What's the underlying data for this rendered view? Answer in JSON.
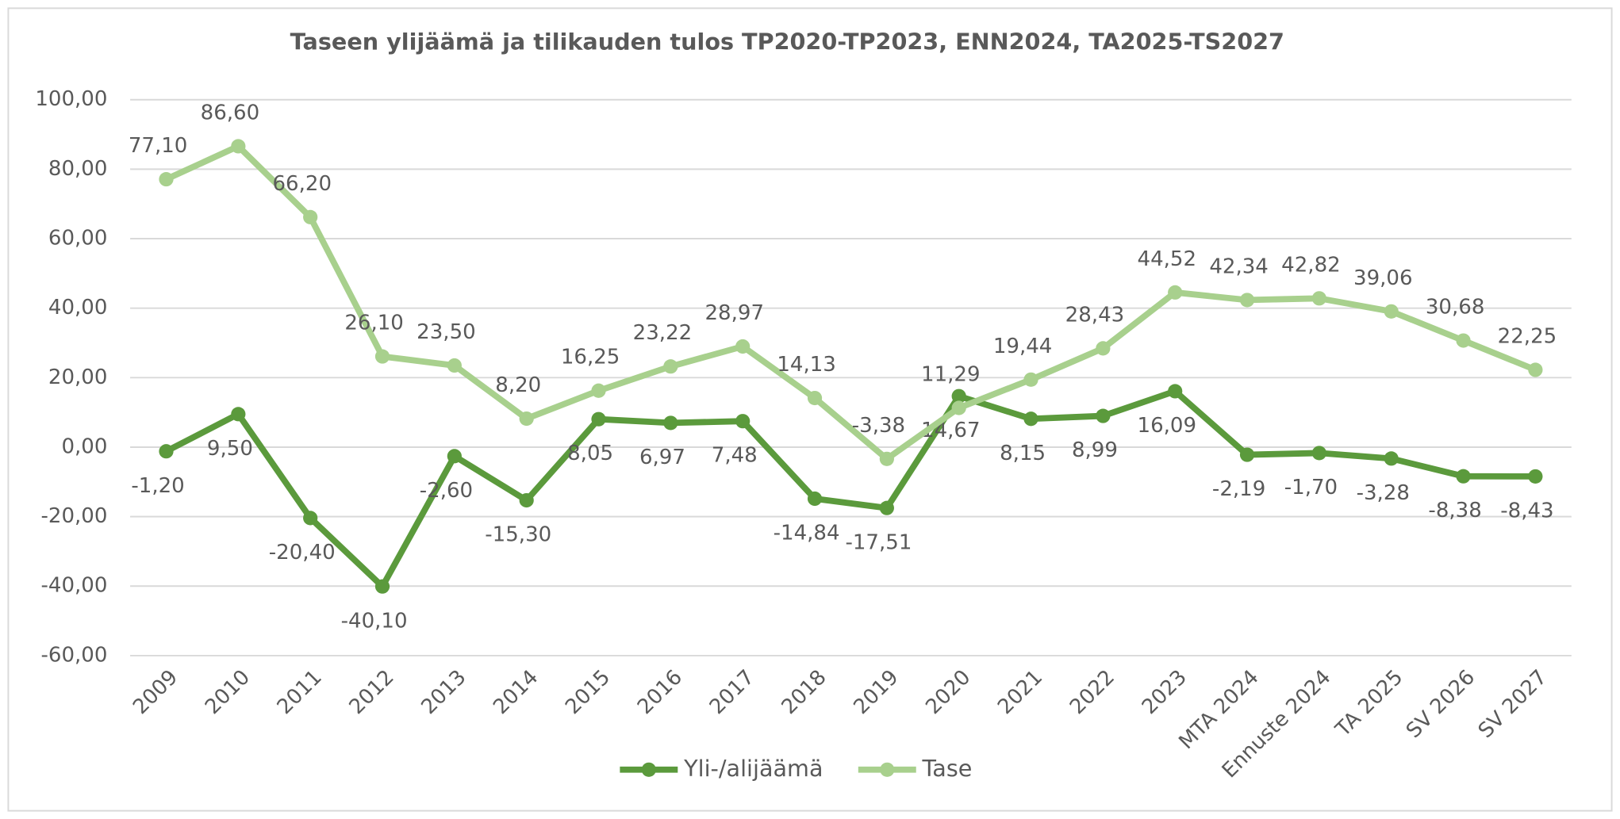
{
  "chart_data": {
    "type": "line",
    "title": "Taseen ylijäämä ja tilikauden tulos TP2020-TP2023, ENN2024, TA2025-TS2027",
    "categories": [
      "2009",
      "2010",
      "2011",
      "2012",
      "2013",
      "2014",
      "2015",
      "2016",
      "2017",
      "2018",
      "2019",
      "2020",
      "2021",
      "2022",
      "2023",
      "MTA 2024",
      "Ennuste 2024",
      "TA 2025",
      "SV 2026",
      "SV 2027"
    ],
    "series": [
      {
        "name": "Yli-/alijäämä",
        "color": "#5b9a3c",
        "values": [
          -1.2,
          9.5,
          -20.4,
          -40.1,
          -2.6,
          -15.3,
          8.05,
          6.97,
          7.48,
          -14.84,
          -17.51,
          14.67,
          8.15,
          8.99,
          16.09,
          -2.19,
          -1.7,
          -3.28,
          -8.38,
          -8.43
        ],
        "value_labels": [
          "-1,20",
          "9,50",
          "-20,40",
          "-40,10",
          "-2,60",
          "-15,30",
          "8,05",
          "6,97",
          "7,48",
          "-14,84",
          "-17,51",
          "14,67",
          "8,15",
          "8,99",
          "16,09",
          "-2,19",
          "-1,70",
          "-3,28",
          "-8,38",
          "-8,43"
        ]
      },
      {
        "name": "Tase",
        "color": "#a8d08d",
        "values": [
          77.1,
          86.6,
          66.2,
          26.1,
          23.5,
          8.2,
          16.25,
          23.22,
          28.97,
          14.13,
          -3.38,
          11.29,
          19.44,
          28.43,
          44.52,
          42.34,
          42.82,
          39.06,
          30.68,
          22.25
        ],
        "value_labels": [
          "77,10",
          "86,60",
          "66,20",
          "26,10",
          "23,50",
          "8,20",
          "16,25",
          "23,22",
          "28,97",
          "14,13",
          "-3,38",
          "11,29",
          "19,44",
          "28,43",
          "44,52",
          "42,34",
          "42,82",
          "39,06",
          "30,68",
          "22,25"
        ]
      }
    ],
    "ylim": [
      -60,
      100
    ],
    "yticks": [
      {
        "value": -60,
        "label": "-60,00"
      },
      {
        "value": -40,
        "label": "-40,00"
      },
      {
        "value": -20,
        "label": "-20,00"
      },
      {
        "value": 0,
        "label": "0,00"
      },
      {
        "value": 20,
        "label": "20,00"
      },
      {
        "value": 40,
        "label": "40,00"
      },
      {
        "value": 60,
        "label": "60,00"
      },
      {
        "value": 80,
        "label": "80,00"
      },
      {
        "value": 100,
        "label": "100,00"
      }
    ],
    "grid": true,
    "legend": "bottom"
  }
}
